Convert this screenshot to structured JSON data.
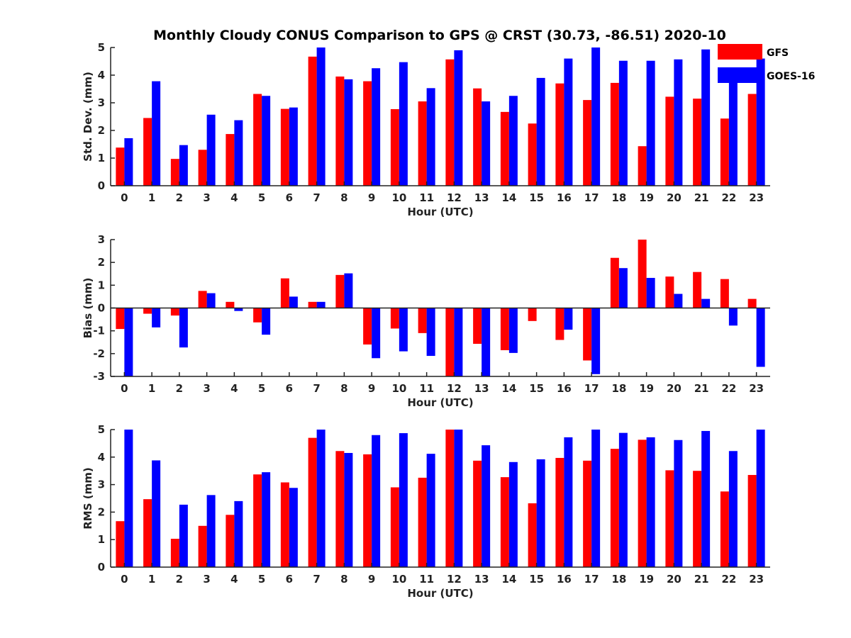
{
  "title": "Monthly Cloudy CONUS Comparison to GPS @ CRST (30.73, -86.51) 2020-10",
  "legend": {
    "placement": "top-right",
    "entries": [
      {
        "name": "GFS",
        "color": "#ff0000"
      },
      {
        "name": "GOES-16",
        "color": "#0000ff"
      }
    ]
  },
  "chart_data": [
    {
      "type": "bar",
      "xlabel": "Hour (UTC)",
      "ylabel": "Std. Dev. (mm)",
      "ylim": [
        0,
        5
      ],
      "yticks": [
        0,
        1,
        2,
        3,
        4,
        5
      ],
      "categories": [
        "0",
        "1",
        "2",
        "3",
        "4",
        "5",
        "6",
        "7",
        "8",
        "9",
        "10",
        "11",
        "12",
        "13",
        "14",
        "15",
        "16",
        "17",
        "18",
        "19",
        "20",
        "21",
        "22",
        "23"
      ],
      "series": [
        {
          "name": "GFS",
          "color": "#ff0000",
          "values": [
            1.38,
            2.45,
            0.97,
            1.3,
            1.87,
            3.32,
            2.78,
            4.67,
            3.95,
            3.78,
            2.77,
            3.05,
            4.57,
            3.52,
            2.67,
            2.25,
            3.7,
            3.1,
            3.72,
            1.43,
            3.22,
            3.15,
            2.43,
            3.32
          ]
        },
        {
          "name": "GOES-16",
          "color": "#0000ff",
          "values": [
            1.72,
            3.78,
            1.47,
            2.57,
            2.37,
            3.25,
            2.83,
            5.0,
            3.85,
            4.25,
            4.47,
            3.53,
            4.9,
            3.05,
            3.25,
            3.9,
            4.6,
            5.0,
            4.52,
            4.52,
            4.57,
            4.93,
            4.13,
            4.6
          ]
        }
      ]
    },
    {
      "type": "bar",
      "xlabel": "Hour (UTC)",
      "ylabel": "Bias (mm)",
      "ylim": [
        -3,
        3
      ],
      "yticks": [
        -3,
        -2,
        -1,
        0,
        1,
        2,
        3
      ],
      "categories": [
        "0",
        "1",
        "2",
        "3",
        "4",
        "5",
        "6",
        "7",
        "8",
        "9",
        "10",
        "11",
        "12",
        "13",
        "14",
        "15",
        "16",
        "17",
        "18",
        "19",
        "20",
        "21",
        "22",
        "23"
      ],
      "series": [
        {
          "name": "GFS",
          "color": "#ff0000",
          "values": [
            -0.92,
            -0.25,
            -0.33,
            0.75,
            0.27,
            -0.63,
            1.3,
            0.27,
            1.45,
            -1.6,
            -0.9,
            -1.1,
            -3.0,
            -1.57,
            -1.85,
            -0.57,
            -1.4,
            -2.3,
            2.2,
            3.0,
            1.38,
            1.58,
            1.27,
            0.4
          ]
        },
        {
          "name": "GOES-16",
          "color": "#0000ff",
          "values": [
            -3.0,
            -0.85,
            -1.73,
            0.65,
            -0.13,
            -1.17,
            0.5,
            0.27,
            1.52,
            -2.2,
            -1.9,
            -2.1,
            -3.0,
            -3.0,
            -1.97,
            0.0,
            -0.95,
            -2.9,
            1.75,
            1.32,
            0.62,
            0.4,
            -0.77,
            -2.58
          ]
        }
      ]
    },
    {
      "type": "bar",
      "xlabel": "Hour (UTC)",
      "ylabel": "RMS (mm)",
      "ylim": [
        0,
        5
      ],
      "yticks": [
        0,
        1,
        2,
        3,
        4,
        5
      ],
      "categories": [
        "0",
        "1",
        "2",
        "3",
        "4",
        "5",
        "6",
        "7",
        "8",
        "9",
        "10",
        "11",
        "12",
        "13",
        "14",
        "15",
        "16",
        "17",
        "18",
        "19",
        "20",
        "21",
        "22",
        "23"
      ],
      "series": [
        {
          "name": "GFS",
          "color": "#ff0000",
          "values": [
            1.67,
            2.47,
            1.03,
            1.5,
            1.9,
            3.37,
            3.08,
            4.7,
            4.22,
            4.1,
            2.9,
            3.25,
            5.0,
            3.87,
            3.27,
            2.32,
            3.97,
            3.87,
            4.3,
            4.63,
            3.52,
            3.5,
            2.75,
            3.35
          ]
        },
        {
          "name": "GOES-16",
          "color": "#0000ff",
          "values": [
            5.0,
            3.88,
            2.27,
            2.62,
            2.4,
            3.45,
            2.88,
            5.0,
            4.15,
            4.8,
            4.87,
            4.12,
            5.0,
            4.43,
            3.82,
            3.92,
            4.72,
            5.0,
            4.88,
            4.72,
            4.62,
            4.95,
            4.22,
            5.0
          ]
        }
      ]
    }
  ]
}
